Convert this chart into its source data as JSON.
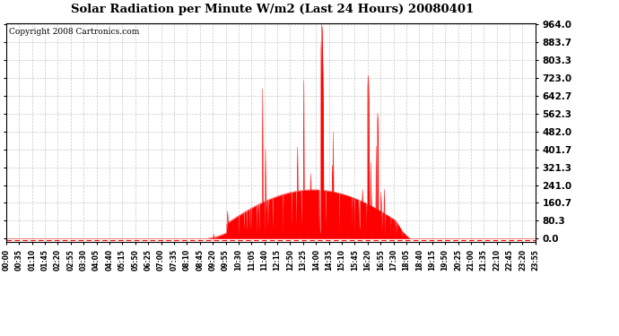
{
  "title": "Solar Radiation per Minute W/m2 (Last 24 Hours) 20080401",
  "copyright": "Copyright 2008 Cartronics.com",
  "background_color": "#ffffff",
  "plot_bg_color": "#ffffff",
  "fill_color": "#ff0000",
  "dashed_line_color": "#ff0000",
  "grid_color": "#c8c8c8",
  "yticks": [
    0.0,
    80.3,
    160.7,
    241.0,
    321.3,
    401.7,
    482.0,
    562.3,
    642.7,
    723.0,
    803.3,
    883.7,
    964.0
  ],
  "ymax": 964.0,
  "ymin": 0.0,
  "xtick_labels": [
    "00:00",
    "00:35",
    "01:10",
    "01:45",
    "02:20",
    "02:55",
    "03:30",
    "04:05",
    "04:40",
    "05:15",
    "05:50",
    "06:25",
    "07:00",
    "07:35",
    "08:10",
    "08:45",
    "09:20",
    "09:55",
    "10:30",
    "11:05",
    "11:40",
    "12:15",
    "12:50",
    "13:25",
    "14:00",
    "14:35",
    "15:10",
    "15:45",
    "16:20",
    "16:55",
    "17:30",
    "18:05",
    "18:40",
    "19:15",
    "19:50",
    "20:25",
    "21:00",
    "21:35",
    "22:10",
    "22:45",
    "23:20",
    "23:55"
  ],
  "n_minutes": 1440,
  "sunrise_minute": 540,
  "sunset_minute": 1130,
  "peak_minute": 860,
  "peak_value": 964.0,
  "second_peak_minute": 985,
  "second_peak_value": 735.0
}
